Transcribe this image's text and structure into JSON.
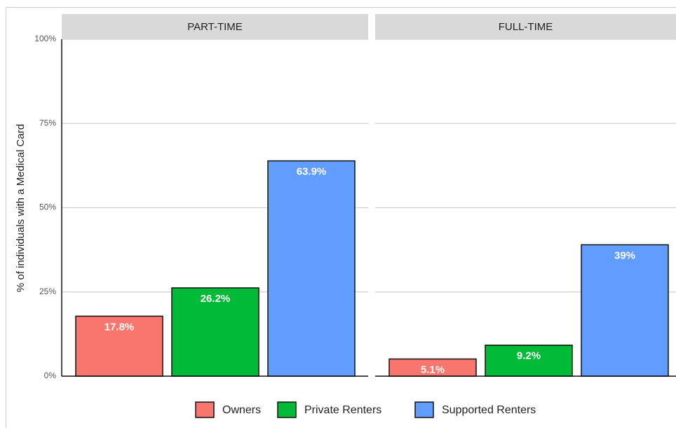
{
  "chart_data": {
    "type": "bar",
    "facets": [
      "PART-TIME",
      "FULL-TIME"
    ],
    "ylabel": "% of individuals with a Medical Card",
    "ylim": [
      0,
      100
    ],
    "yticks": [
      {
        "value": 0,
        "label": "0%"
      },
      {
        "value": 25,
        "label": "25%"
      },
      {
        "value": 50,
        "label": "50%"
      },
      {
        "value": 75,
        "label": "75%"
      },
      {
        "value": 100,
        "label": "100%"
      }
    ],
    "grid": true,
    "legend": "bottom",
    "series": [
      {
        "name": "Owners",
        "color": "#f8766d",
        "values": [
          17.8,
          5.1
        ],
        "value_labels": [
          "17.8%",
          "5.1%"
        ]
      },
      {
        "name": "Private Renters",
        "color": "#00ba38",
        "values": [
          26.2,
          9.2
        ],
        "value_labels": [
          "26.2%",
          "9.2%"
        ]
      },
      {
        "name": "Supported Renters",
        "color": "#619cff",
        "values": [
          63.9,
          39
        ],
        "value_labels": [
          "63.9%",
          "39%"
        ]
      }
    ]
  }
}
